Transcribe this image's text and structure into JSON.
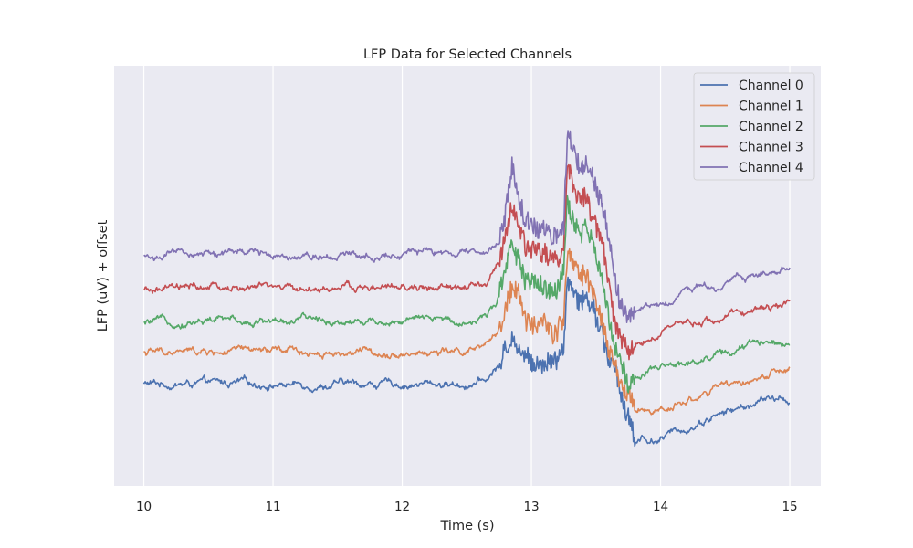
{
  "chart_data": {
    "type": "line",
    "title": "LFP Data for Selected Channels",
    "xlabel": "Time (s)",
    "ylabel": "LFP (uV) + offset",
    "xlim": [
      9.77,
      15.24
    ],
    "ylim": [
      -0.32,
      1.0
    ],
    "grid": true,
    "legend_position": "top-right",
    "x_ticks": [
      "10",
      "11",
      "12",
      "13",
      "14",
      "15"
    ],
    "x_tick_values": [
      10,
      11,
      12,
      13,
      14,
      15
    ],
    "y_ticks": [],
    "series": [
      {
        "name": "Channel 0",
        "color": "#4c72b0",
        "offset": 0.0,
        "x": [
          10.0,
          10.5,
          11.0,
          11.5,
          12.0,
          12.5,
          12.65,
          12.75,
          12.8,
          12.85,
          12.9,
          12.95,
          13.0,
          13.1,
          13.2,
          13.25,
          13.28,
          13.32,
          13.38,
          13.42,
          13.48,
          13.55,
          13.6,
          13.65,
          13.7,
          13.75,
          13.78,
          13.8,
          13.85,
          13.9,
          14.0,
          14.2,
          14.4,
          14.6,
          14.8,
          15.0
        ],
        "y": [
          0.0,
          0.0,
          0.0,
          0.0,
          0.0,
          0.0,
          0.01,
          0.06,
          0.1,
          0.14,
          0.12,
          0.09,
          0.08,
          0.07,
          0.07,
          0.12,
          0.33,
          0.3,
          0.26,
          0.27,
          0.24,
          0.15,
          0.07,
          0.05,
          -0.05,
          -0.1,
          -0.13,
          -0.2,
          -0.17,
          -0.18,
          -0.17,
          -0.14,
          -0.1,
          -0.08,
          -0.05,
          -0.05
        ]
      },
      {
        "name": "Channel 1",
        "color": "#dd8452",
        "offset": 0.0,
        "x": [
          10.0,
          10.5,
          11.0,
          11.5,
          12.0,
          12.5,
          12.65,
          12.75,
          12.8,
          12.85,
          12.9,
          12.95,
          13.0,
          13.1,
          13.2,
          13.25,
          13.28,
          13.32,
          13.38,
          13.42,
          13.48,
          13.55,
          13.6,
          13.65,
          13.7,
          13.75,
          13.78,
          13.8,
          13.85,
          13.9,
          14.0,
          14.2,
          14.4,
          14.6,
          14.8,
          15.0
        ],
        "y": [
          0.1,
          0.1,
          0.1,
          0.1,
          0.1,
          0.1,
          0.11,
          0.17,
          0.25,
          0.3,
          0.28,
          0.2,
          0.19,
          0.18,
          0.17,
          0.21,
          0.42,
          0.37,
          0.33,
          0.34,
          0.3,
          0.2,
          0.11,
          0.07,
          0.01,
          -0.05,
          -0.07,
          -0.1,
          -0.08,
          -0.09,
          -0.08,
          -0.05,
          -0.02,
          0.0,
          0.02,
          0.04
        ]
      },
      {
        "name": "Channel 2",
        "color": "#55a868",
        "offset": 0.0,
        "x": [
          10.0,
          10.5,
          11.0,
          11.5,
          12.0,
          12.5,
          12.65,
          12.75,
          12.8,
          12.85,
          12.9,
          12.95,
          13.0,
          13.1,
          13.2,
          13.25,
          13.28,
          13.32,
          13.38,
          13.42,
          13.48,
          13.55,
          13.6,
          13.65,
          13.7,
          13.75,
          13.78,
          13.8,
          13.85,
          13.9,
          14.0,
          14.2,
          14.4,
          14.6,
          14.8,
          15.0
        ],
        "y": [
          0.19,
          0.2,
          0.2,
          0.2,
          0.2,
          0.2,
          0.21,
          0.28,
          0.38,
          0.46,
          0.4,
          0.33,
          0.32,
          0.3,
          0.29,
          0.35,
          0.57,
          0.51,
          0.47,
          0.48,
          0.43,
          0.33,
          0.21,
          0.12,
          0.07,
          0.0,
          0.01,
          0.01,
          0.02,
          0.03,
          0.04,
          0.07,
          0.09,
          0.11,
          0.13,
          0.14
        ]
      },
      {
        "name": "Channel 3",
        "color": "#c44e52",
        "offset": 0.0,
        "x": [
          10.0,
          10.5,
          11.0,
          11.5,
          12.0,
          12.5,
          12.65,
          12.75,
          12.8,
          12.85,
          12.9,
          12.95,
          13.0,
          13.1,
          13.2,
          13.25,
          13.28,
          13.32,
          13.38,
          13.42,
          13.48,
          13.55,
          13.6,
          13.65,
          13.7,
          13.75,
          13.78,
          13.8,
          13.85,
          13.9,
          14.0,
          14.2,
          14.4,
          14.6,
          14.8,
          15.0
        ],
        "y": [
          0.29,
          0.3,
          0.3,
          0.3,
          0.3,
          0.3,
          0.31,
          0.38,
          0.48,
          0.57,
          0.5,
          0.44,
          0.42,
          0.4,
          0.39,
          0.45,
          0.71,
          0.63,
          0.58,
          0.59,
          0.53,
          0.43,
          0.31,
          0.2,
          0.14,
          0.12,
          0.13,
          0.13,
          0.14,
          0.15,
          0.16,
          0.18,
          0.2,
          0.22,
          0.24,
          0.26
        ]
      },
      {
        "name": "Channel 4",
        "color": "#8172b3",
        "offset": 0.0,
        "x": [
          10.0,
          10.5,
          11.0,
          11.5,
          12.0,
          12.5,
          12.65,
          12.75,
          12.8,
          12.85,
          12.9,
          12.95,
          13.0,
          13.1,
          13.2,
          13.25,
          13.28,
          13.32,
          13.38,
          13.42,
          13.48,
          13.55,
          13.6,
          13.65,
          13.7,
          13.75,
          13.78,
          13.8,
          13.85,
          13.9,
          14.0,
          14.2,
          14.4,
          14.6,
          14.8,
          15.0
        ],
        "y": [
          0.4,
          0.41,
          0.41,
          0.41,
          0.41,
          0.41,
          0.41,
          0.45,
          0.54,
          0.68,
          0.58,
          0.51,
          0.49,
          0.48,
          0.47,
          0.5,
          0.83,
          0.74,
          0.69,
          0.7,
          0.64,
          0.54,
          0.43,
          0.31,
          0.24,
          0.21,
          0.22,
          0.22,
          0.24,
          0.25,
          0.26,
          0.29,
          0.31,
          0.33,
          0.35,
          0.36
        ]
      }
    ]
  }
}
